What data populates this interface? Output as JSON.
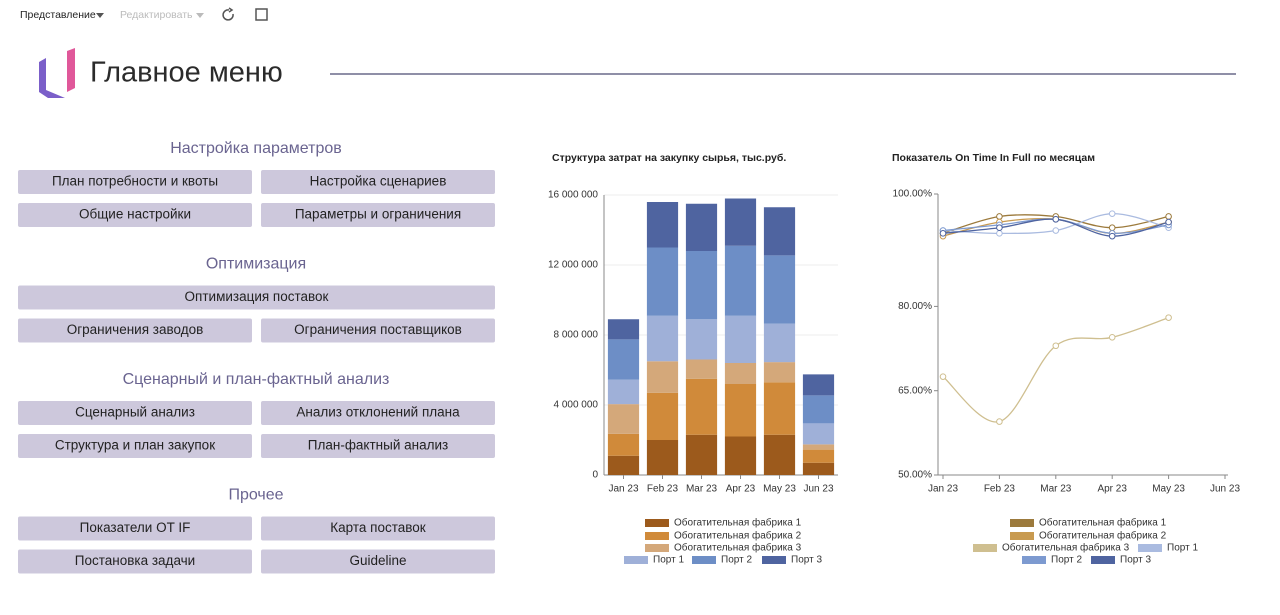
{
  "toolbar": {
    "view": "Представление",
    "edit": "Редактировать"
  },
  "header": {
    "title": "Главное меню"
  },
  "menu": {
    "sections": [
      {
        "title": "Настройка параметров",
        "rows": [
          [
            "План потребности и квоты",
            "Настройка сценариев"
          ],
          [
            "Общие настройки",
            "Параметры и ограничения"
          ]
        ]
      },
      {
        "title": "Оптимизация",
        "rows": [
          [
            "Оптимизация поставок"
          ],
          [
            "Ограничения заводов",
            "Ограничения поставщиков"
          ]
        ]
      },
      {
        "title": "Сценарный и план-фактный анализ",
        "rows": [
          [
            "Сценарный анализ",
            "Анализ отклонений плана"
          ],
          [
            "Структура и план закупок",
            "План-фактный анализ"
          ]
        ]
      },
      {
        "title": "Прочее",
        "rows": [
          [
            "Показатели OT IF",
            "Карта поставок"
          ],
          [
            "Постановка задачи",
            "Guideline"
          ]
        ]
      }
    ]
  },
  "chart_data": [
    {
      "type": "stacked_bar",
      "title": "Структура затрат на закупку сырья, тыс.руб.",
      "categories": [
        "Jan 23",
        "Feb 23",
        "Mar 23",
        "Apr 23",
        "May 23",
        "Jun 23"
      ],
      "ylim": [
        0,
        16000000
      ],
      "yticks": [
        0,
        {
          "value": 4000000,
          "label": "4 000 000"
        },
        {
          "value": 8000000,
          "label": "8 000 000"
        },
        {
          "value": 12000000,
          "label": "12 000 000"
        },
        {
          "value": 16000000,
          "label": "16 000 000"
        }
      ],
      "grid": true,
      "series": [
        {
          "name": "Обогатительная фабрика 1",
          "color": "#9c5a1c",
          "values": [
            1100000,
            2000000,
            2300000,
            2200000,
            2300000,
            700000
          ]
        },
        {
          "name": "Обогатительная фабрика 2",
          "color": "#d08a3a",
          "values": [
            1250000,
            2700000,
            3200000,
            3000000,
            3000000,
            750000
          ]
        },
        {
          "name": "Обогатительная фабрика 3",
          "color": "#d4a87a",
          "values": [
            1700000,
            1800000,
            1100000,
            1200000,
            1150000,
            300000
          ]
        },
        {
          "name": "Порт 1",
          "color": "#9fb0d8",
          "values": [
            1400000,
            2600000,
            2300000,
            2700000,
            2200000,
            1200000
          ]
        },
        {
          "name": "Порт 2",
          "color": "#6d8ec6",
          "values": [
            2300000,
            3900000,
            3900000,
            4000000,
            3900000,
            1600000
          ]
        },
        {
          "name": "Порт 3",
          "color": "#4f64a0",
          "values": [
            1150000,
            2600000,
            2700000,
            2700000,
            2750000,
            1200000
          ]
        }
      ]
    },
    {
      "type": "line",
      "title": "Показатель On Time In Full по месяцам",
      "categories": [
        "Jan 23",
        "Feb 23",
        "Mar 23",
        "Apr 23",
        "May 23",
        "Jun 23"
      ],
      "ylim": [
        50,
        100
      ],
      "yticks": [
        {
          "value": 50,
          "label": "50.00%"
        },
        {
          "value": 65,
          "label": "65.00%"
        },
        {
          "value": 80,
          "label": "80.00%"
        },
        {
          "value": 100,
          "label": "100.00%"
        }
      ],
      "grid": false,
      "series": [
        {
          "name": "Обогатительная фабрика 1",
          "color": "#9c7a3c",
          "values": [
            93,
            96,
            96,
            94,
            96,
            null
          ]
        },
        {
          "name": "Обогатительная фабрика 2",
          "color": "#c89a50",
          "values": [
            92.5,
            95,
            95.5,
            93,
            95,
            null
          ]
        },
        {
          "name": "Обогатительная фабрика 3",
          "color": "#cfbf90",
          "values": [
            67.5,
            59.5,
            73,
            74.5,
            78,
            null
          ]
        },
        {
          "name": "Порт 1",
          "color": "#aabbe0",
          "values": [
            93.5,
            93,
            93.5,
            96.5,
            94,
            null
          ]
        },
        {
          "name": "Порт 2",
          "color": "#7d9ad0",
          "values": [
            93.5,
            94.5,
            95.5,
            93,
            94.5,
            null
          ]
        },
        {
          "name": "Порт 3",
          "color": "#4f64a0",
          "values": [
            93,
            94,
            95.5,
            92.5,
            95,
            null
          ]
        }
      ]
    }
  ]
}
